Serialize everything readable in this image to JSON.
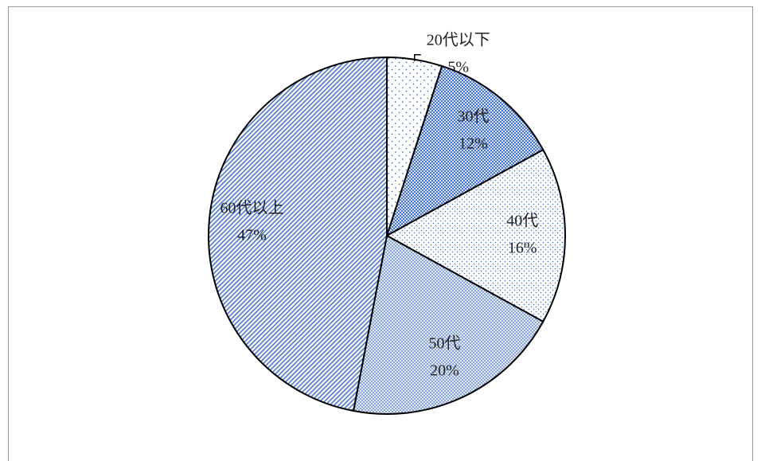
{
  "chart_data": {
    "type": "pie",
    "categories": [
      "20代以下",
      "30代",
      "40代",
      "50代",
      "60代以上"
    ],
    "values": [
      5,
      12,
      16,
      20,
      47
    ],
    "value_labels": [
      "5%",
      "12%",
      "16%",
      "20%",
      "47%"
    ]
  }
}
